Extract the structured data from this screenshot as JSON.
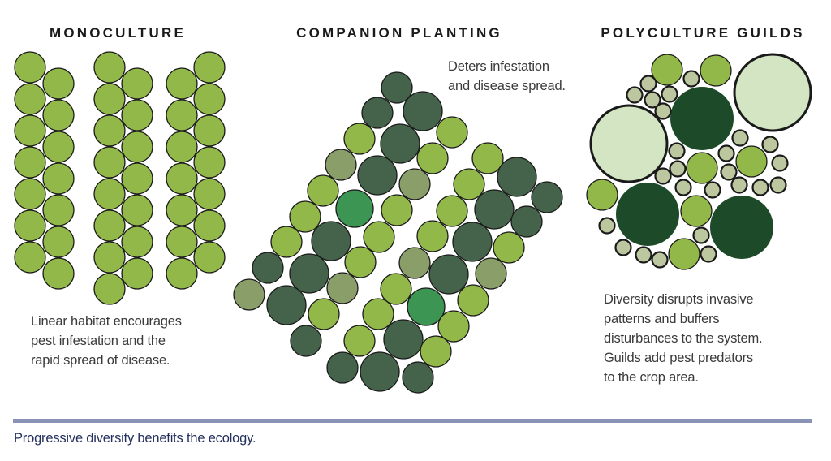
{
  "sections": [
    {
      "title": "MONOCULTURE",
      "description": [
        "Linear habitat encourages",
        "pest infestation and the",
        "rapid spread of disease."
      ]
    },
    {
      "title": "COMPANION PLANTING",
      "description": [
        "Deters infestation",
        "and disease spread."
      ]
    },
    {
      "title": "POLYCULTURE GUILDS",
      "description": [
        "Diversity disrupts invasive",
        "patterns and buffers",
        "disturbances to the system.",
        "Guilds add pest predators",
        "to the crop area."
      ]
    }
  ],
  "caption": "Progressive diversity benefits the ecology.",
  "colors": {
    "crop_light_green": "#92b84a",
    "companion_dark": "#45624a",
    "companion_gray_green": "#8a9e6a",
    "companion_mid_green": "#3d9553",
    "guild_canopy": "#d3e5c3",
    "guild_dark": "#1d4a29",
    "guild_small": "#bcc7a0",
    "divider": "#8a93b5",
    "caption": "#24305e"
  }
}
